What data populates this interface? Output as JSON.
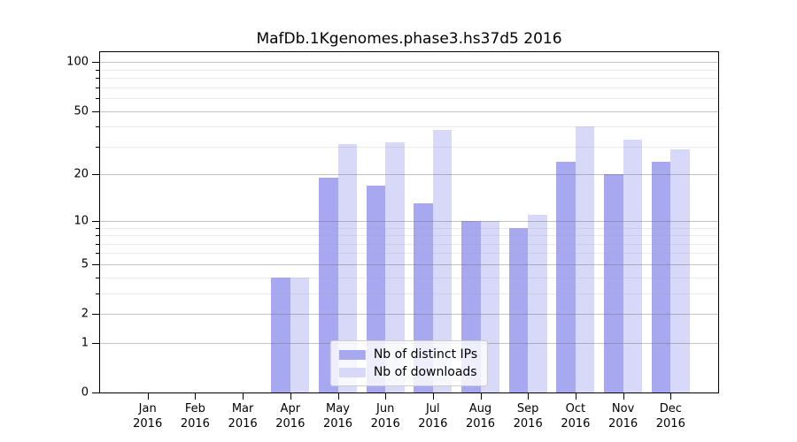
{
  "chart_data": {
    "type": "bar",
    "title": "MafDb.1Kgenomes.phase3.hs37d5 2016",
    "categories": [
      "Jan 2016",
      "Feb 2016",
      "Mar 2016",
      "Apr 2016",
      "May 2016",
      "Jun 2016",
      "Jul 2016",
      "Aug 2016",
      "Sep 2016",
      "Oct 2016",
      "Nov 2016",
      "Dec 2016"
    ],
    "series": [
      {
        "name": "Nb of distinct IPs",
        "color": "#a8a8f0",
        "values": [
          0,
          0,
          0,
          4,
          19,
          17,
          13,
          10,
          9,
          24,
          20,
          24
        ]
      },
      {
        "name": "Nb of downloads",
        "color": "#d8d8f8",
        "values": [
          0,
          0,
          0,
          4,
          31,
          32,
          38,
          10,
          11,
          40,
          33,
          29
        ]
      }
    ],
    "xlabel": "",
    "ylabel": "",
    "yscale": "log1p",
    "ylim": [
      0,
      115
    ],
    "y_major_ticks": [
      0,
      1,
      2,
      5,
      10,
      20,
      50,
      100
    ],
    "y_minor_ticks": [
      3,
      4,
      6,
      7,
      8,
      9,
      30,
      40,
      60,
      70,
      80,
      90
    ],
    "grid": "on",
    "legend_position": "lower center",
    "colors": {
      "grid_major": "#c4c4c4",
      "grid_minor": "#e4e4e4",
      "spine": "#000000",
      "legend_border": "#cccccc",
      "background": "#ffffff"
    }
  }
}
